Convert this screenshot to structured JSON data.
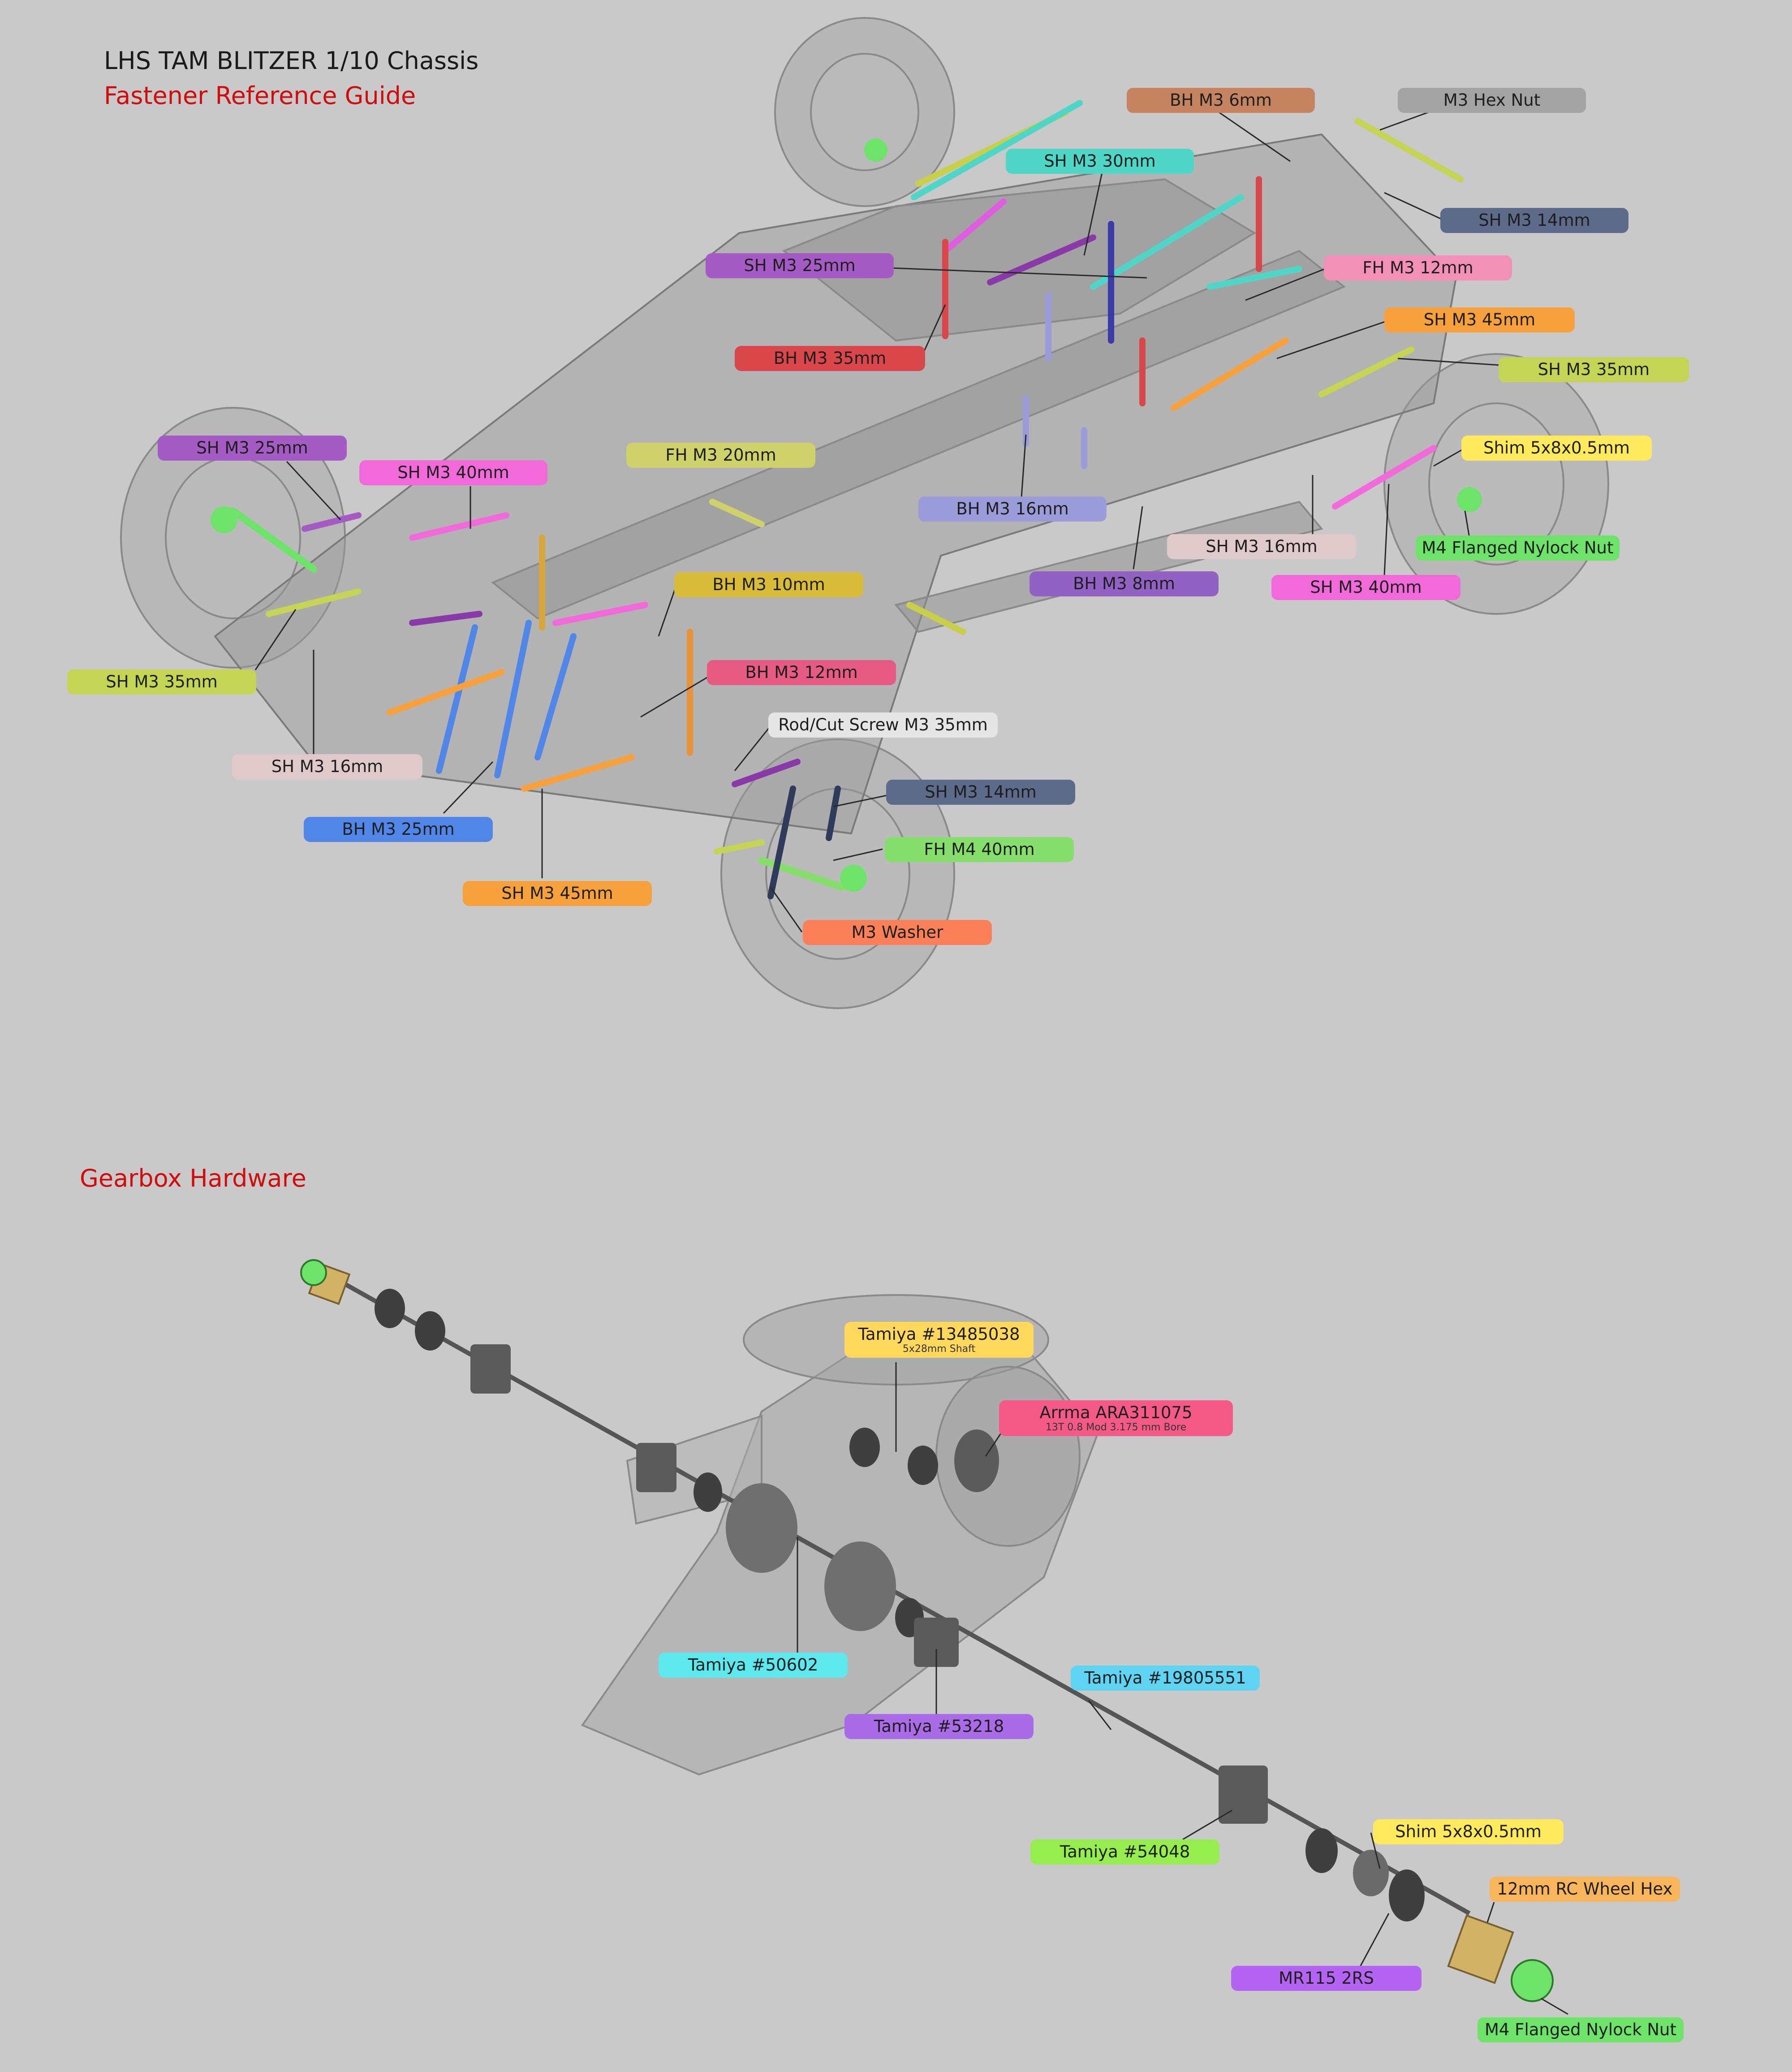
{
  "header": {
    "title": "LHS TAM BLITZER 1/10 Chassis",
    "subtitle": "Fastener Reference Guide"
  },
  "gearbox": {
    "title": "Gearbox Hardware"
  },
  "colors": {
    "background": "#c9c9c9",
    "title_text": "#1a1a1a",
    "accent_red": "#d10c0c",
    "leader_line": "#2a2a2a"
  },
  "chassis_callouts": [
    {
      "id": "bh-m3-6mm",
      "text": "BH M3 6mm",
      "color": "#c6835f"
    },
    {
      "id": "m3-hex-nut",
      "text": "M3 Hex Nut",
      "color": "#a3a3a3"
    },
    {
      "id": "sh-m3-30mm",
      "text": "SH M3 30mm",
      "color": "#4fd6c6"
    },
    {
      "id": "sh-m3-14mm-top",
      "text": "SH M3 14mm",
      "color": "#5b6b89"
    },
    {
      "id": "sh-m3-25mm-top",
      "text": "SH M3 25mm",
      "color": "#a55bc4"
    },
    {
      "id": "fh-m3-12mm",
      "text": "FH M3 12mm",
      "color": "#f291b5"
    },
    {
      "id": "bh-m3-35mm",
      "text": "BH M3 35mm",
      "color": "#d9474b"
    },
    {
      "id": "sh-m3-45mm-top",
      "text": "SH M3 45mm",
      "color": "#f7a13d"
    },
    {
      "id": "sh-m3-35mm-top",
      "text": "SH M3 35mm",
      "color": "#c4d455"
    },
    {
      "id": "sh-m3-25mm-left",
      "text": "SH M3 25mm",
      "color": "#a55bc4"
    },
    {
      "id": "shim-top",
      "text": "Shim 5x8x0.5mm",
      "color": "#ffe95c"
    },
    {
      "id": "sh-m3-40mm-left",
      "text": "SH M3 40mm",
      "color": "#f26ad9"
    },
    {
      "id": "fh-m3-20mm",
      "text": "FH M3 20mm",
      "color": "#cfd16b"
    },
    {
      "id": "bh-m3-16mm",
      "text": "BH M3 16mm",
      "color": "#9a9bd9"
    },
    {
      "id": "m4-nut-top",
      "text": "M4 Flanged Nylock Nut",
      "color": "#6ee36a"
    },
    {
      "id": "sh-m3-16mm-right",
      "text": "SH M3 16mm",
      "color": "#e0c9cb"
    },
    {
      "id": "bh-m3-8mm",
      "text": "BH M3 8mm",
      "color": "#9162c4"
    },
    {
      "id": "sh-m3-40mm-right",
      "text": "SH M3 40mm",
      "color": "#f26ad9"
    },
    {
      "id": "bh-m3-10mm",
      "text": "BH M3 10mm",
      "color": "#d9bb3a"
    },
    {
      "id": "sh-m3-35mm-left",
      "text": "SH M3 35mm",
      "color": "#c4d455"
    },
    {
      "id": "bh-m3-12mm",
      "text": "BH M3 12mm",
      "color": "#e65a84"
    },
    {
      "id": "rod-cut-screw",
      "text": "Rod/Cut Screw M3 35mm",
      "color": "#e6e6e6"
    },
    {
      "id": "sh-m3-16mm-left",
      "text": "SH M3 16mm",
      "color": "#e0c9cb"
    },
    {
      "id": "sh-m3-14mm-bottom",
      "text": "SH M3 14mm",
      "color": "#5b6b89"
    },
    {
      "id": "bh-m3-25mm",
      "text": "BH M3 25mm",
      "color": "#4f86e8"
    },
    {
      "id": "fh-m4-40mm",
      "text": "FH M4 40mm",
      "color": "#86df6c"
    },
    {
      "id": "sh-m3-45mm-bottom",
      "text": "SH M3 45mm",
      "color": "#f7a13d"
    },
    {
      "id": "m3-washer",
      "text": "M3 Washer",
      "color": "#fb8057"
    }
  ],
  "gearbox_callouts": [
    {
      "id": "tamiya-13485038",
      "text": "Tamiya #13485038",
      "sub": "5x28mm Shaft",
      "color": "#ffd85c"
    },
    {
      "id": "arrma-ara311075",
      "text": "Arrma ARA311075",
      "sub": "13T 0.8 Mod 3.175 mm Bore",
      "color": "#f55a86"
    },
    {
      "id": "tamiya-50602",
      "text": "Tamiya #50602",
      "color": "#5de8ee"
    },
    {
      "id": "tamiya-19805551",
      "text": "Tamiya #19805551",
      "color": "#5fd3f2"
    },
    {
      "id": "tamiya-53218",
      "text": "Tamiya #53218",
      "color": "#a96be8"
    },
    {
      "id": "tamiya-54048",
      "text": "Tamiya #54048",
      "color": "#95ee4d"
    },
    {
      "id": "shim-gearbox",
      "text": "Shim 5x8x0.5mm",
      "color": "#ffe95c"
    },
    {
      "id": "wheel-hex",
      "text": "12mm RC Wheel Hex",
      "color": "#f9b55b"
    },
    {
      "id": "mr115",
      "text": "MR115 2RS",
      "color": "#b463f2"
    },
    {
      "id": "m4-nut-gearbox",
      "text": "M4 Flanged Nylock Nut",
      "color": "#6ee36a"
    }
  ]
}
